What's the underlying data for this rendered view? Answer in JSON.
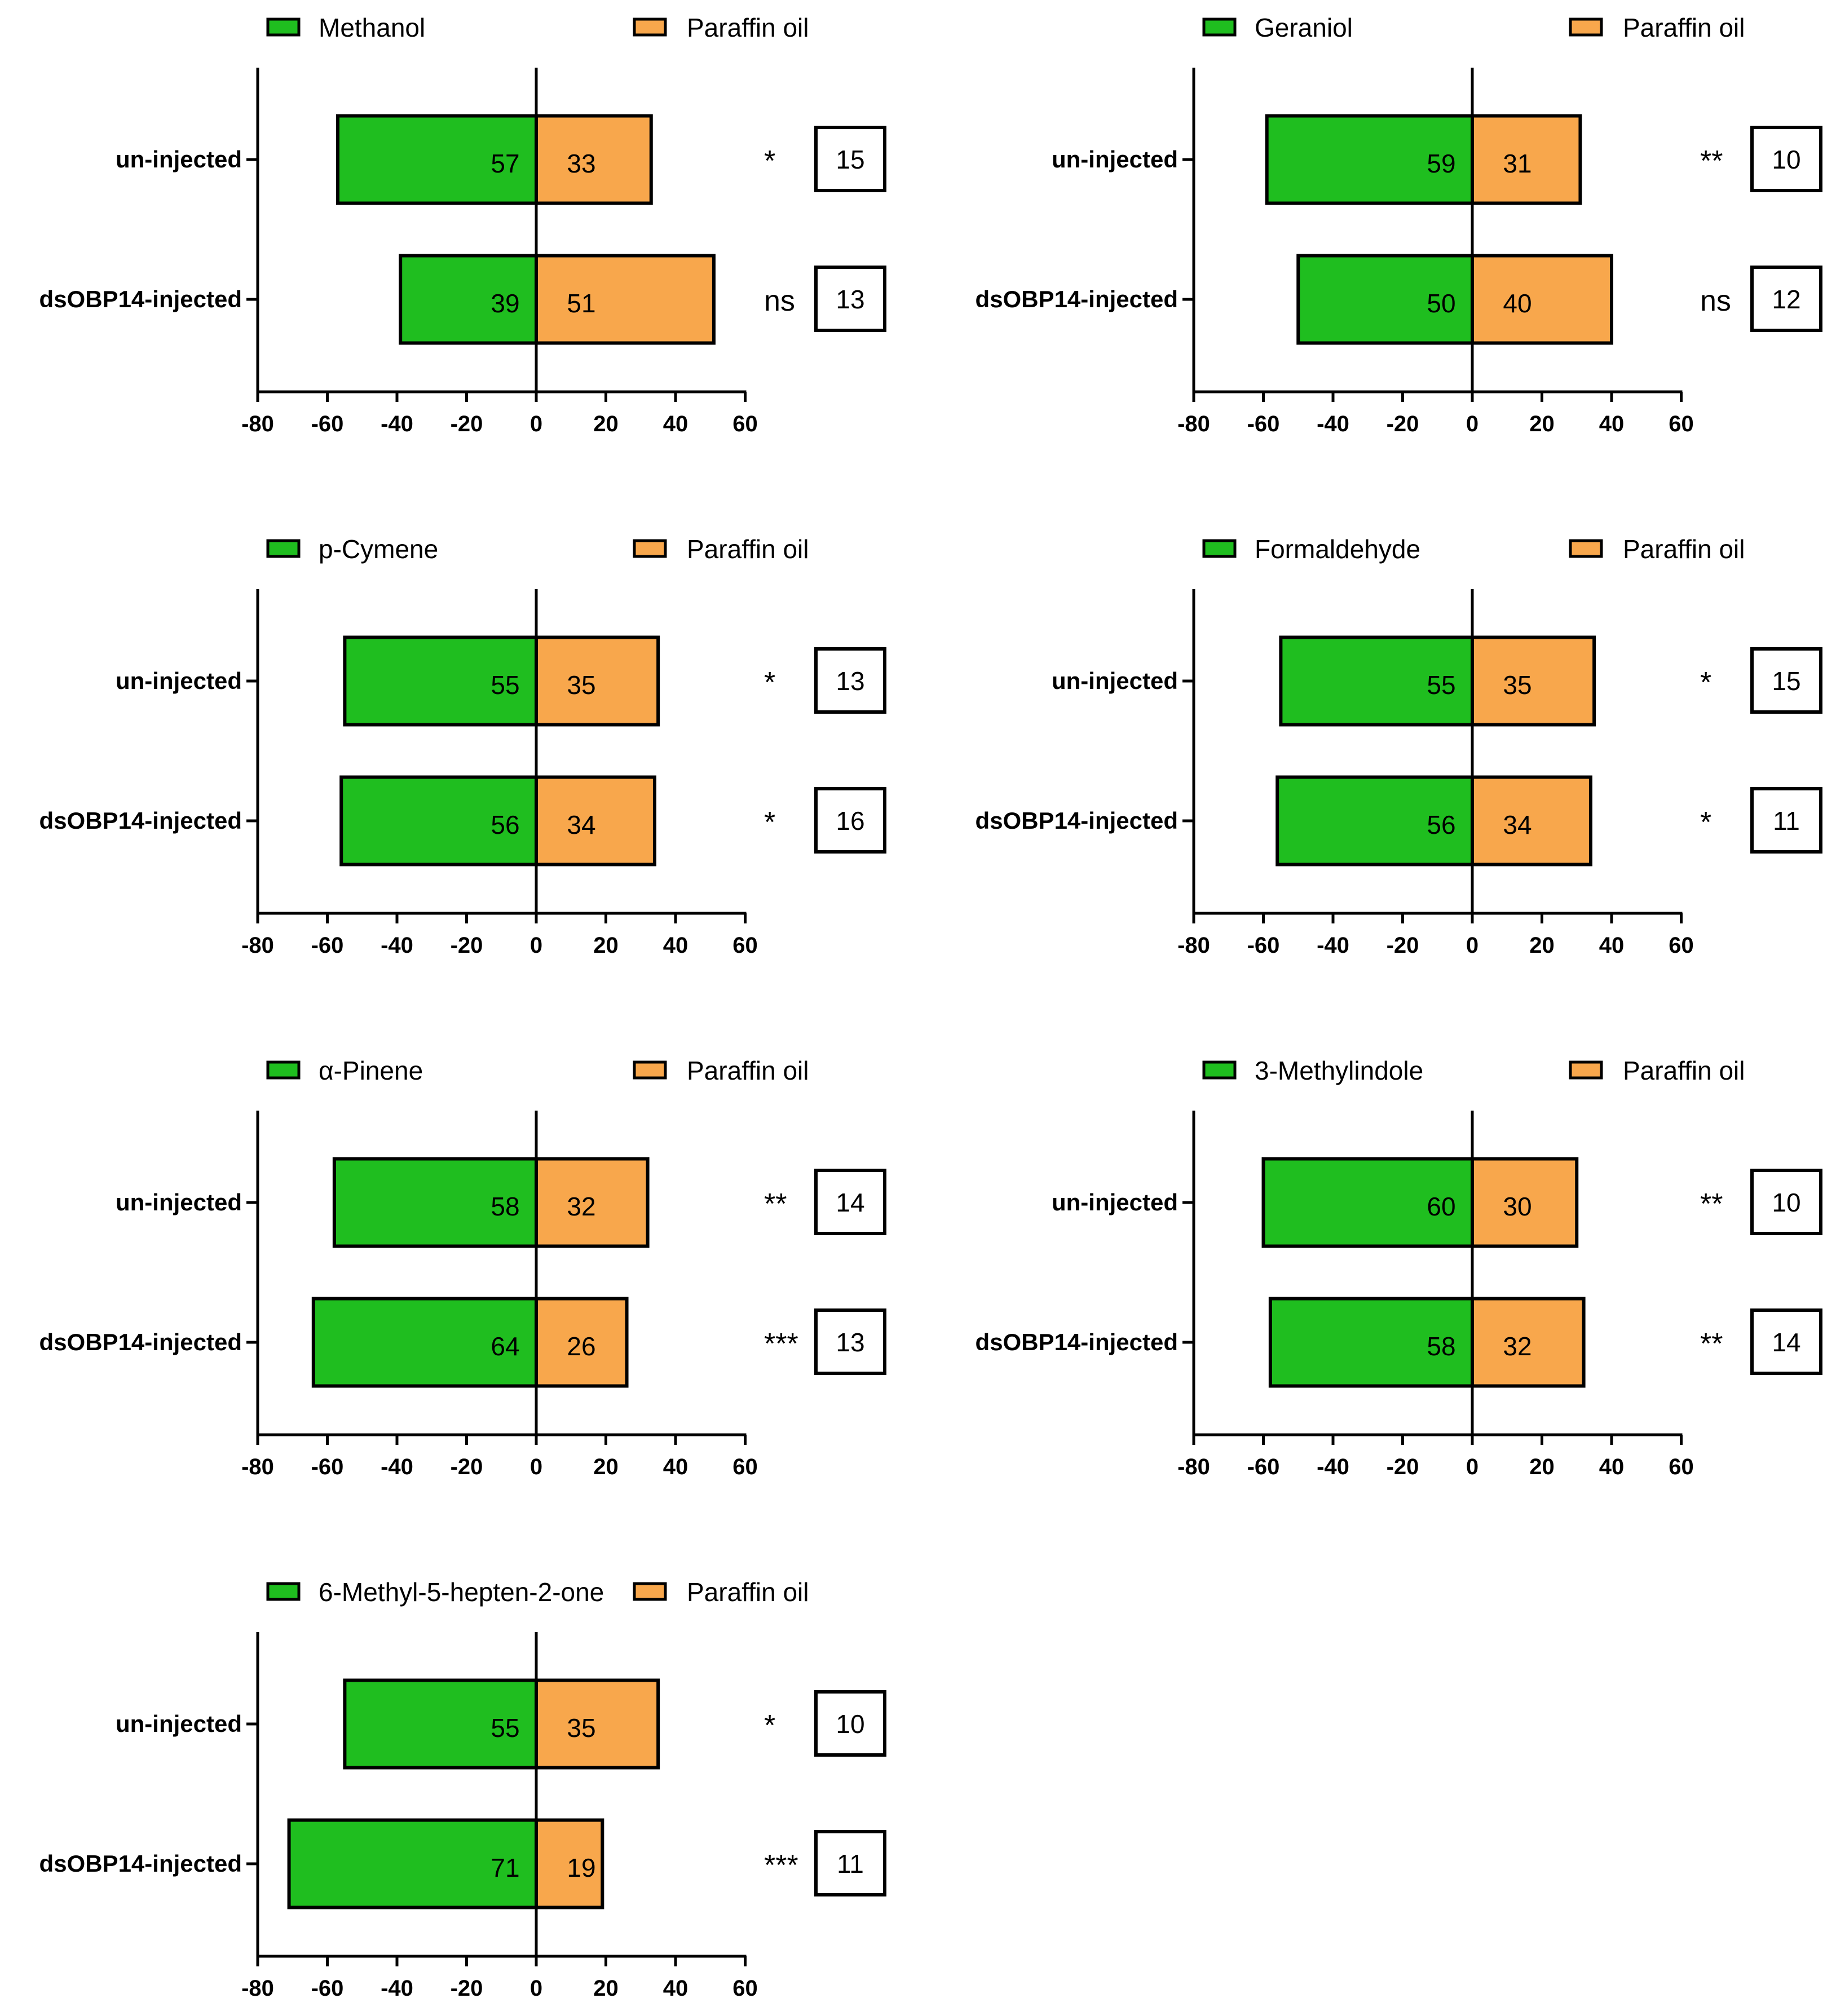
{
  "colors": {
    "treatment": "#1fbe1f",
    "control": "#f8a74c",
    "stroke": "#000000"
  },
  "chart_data": [
    {
      "type": "bar",
      "orientation": "horizontal-diverging",
      "legend": {
        "treatment": "Methanol",
        "control": "Paraffin oil"
      },
      "categories": [
        "un-injected",
        "dsOBP14-injected"
      ],
      "series": [
        {
          "name": "Methanol",
          "values": [
            -57,
            -39
          ]
        },
        {
          "name": "Paraffin oil",
          "values": [
            33,
            51
          ]
        }
      ],
      "value_labels": {
        "treatment": [
          "57",
          "39"
        ],
        "control": [
          "33",
          "51"
        ]
      },
      "significance": [
        "*",
        "ns"
      ],
      "n_counts": [
        "15",
        "13"
      ],
      "xlim": [
        -80,
        60
      ],
      "xticks": [
        "-80",
        "-60",
        "-40",
        "-20",
        "0",
        "20",
        "40",
        "60"
      ]
    },
    {
      "type": "bar",
      "orientation": "horizontal-diverging",
      "legend": {
        "treatment": "Geraniol",
        "control": "Paraffin oil"
      },
      "categories": [
        "un-injected",
        "dsOBP14-injected"
      ],
      "series": [
        {
          "name": "Geraniol",
          "values": [
            -59,
            -50
          ]
        },
        {
          "name": "Paraffin oil",
          "values": [
            31,
            40
          ]
        }
      ],
      "value_labels": {
        "treatment": [
          "59",
          "50"
        ],
        "control": [
          "31",
          "40"
        ]
      },
      "significance": [
        "**",
        "ns"
      ],
      "n_counts": [
        "10",
        "12"
      ],
      "xlim": [
        -80,
        60
      ],
      "xticks": [
        "-80",
        "-60",
        "-40",
        "-20",
        "0",
        "20",
        "40",
        "60"
      ]
    },
    {
      "type": "bar",
      "orientation": "horizontal-diverging",
      "legend": {
        "treatment": "p-Cymene",
        "control": "Paraffin oil"
      },
      "categories": [
        "un-injected",
        "dsOBP14-injected"
      ],
      "series": [
        {
          "name": "p-Cymene",
          "values": [
            -55,
            -56
          ]
        },
        {
          "name": "Paraffin oil",
          "values": [
            35,
            34
          ]
        }
      ],
      "value_labels": {
        "treatment": [
          "55",
          "56"
        ],
        "control": [
          "35",
          "34"
        ]
      },
      "significance": [
        "*",
        "*"
      ],
      "n_counts": [
        "13",
        "16"
      ],
      "xlim": [
        -80,
        60
      ],
      "xticks": [
        "-80",
        "-60",
        "-40",
        "-20",
        "0",
        "20",
        "40",
        "60"
      ]
    },
    {
      "type": "bar",
      "orientation": "horizontal-diverging",
      "legend": {
        "treatment": "Formaldehyde",
        "control": "Paraffin oil"
      },
      "categories": [
        "un-injected",
        "dsOBP14-injected"
      ],
      "series": [
        {
          "name": "Formaldehyde",
          "values": [
            -55,
            -56
          ]
        },
        {
          "name": "Paraffin oil",
          "values": [
            35,
            34
          ]
        }
      ],
      "value_labels": {
        "treatment": [
          "55",
          "56"
        ],
        "control": [
          "35",
          "34"
        ]
      },
      "significance": [
        "*",
        "*"
      ],
      "n_counts": [
        "15",
        "11"
      ],
      "xlim": [
        -80,
        60
      ],
      "xticks": [
        "-80",
        "-60",
        "-40",
        "-20",
        "0",
        "20",
        "40",
        "60"
      ]
    },
    {
      "type": "bar",
      "orientation": "horizontal-diverging",
      "legend": {
        "treatment": "α-Pinene",
        "control": "Paraffin oil"
      },
      "categories": [
        "un-injected",
        "dsOBP14-injected"
      ],
      "series": [
        {
          "name": "α-Pinene",
          "values": [
            -58,
            -64
          ]
        },
        {
          "name": "Paraffin oil",
          "values": [
            32,
            26
          ]
        }
      ],
      "value_labels": {
        "treatment": [
          "58",
          "64"
        ],
        "control": [
          "32",
          "26"
        ]
      },
      "significance": [
        "**",
        "***"
      ],
      "n_counts": [
        "14",
        "13"
      ],
      "xlim": [
        -80,
        60
      ],
      "xticks": [
        "-80",
        "-60",
        "-40",
        "-20",
        "0",
        "20",
        "40",
        "60"
      ]
    },
    {
      "type": "bar",
      "orientation": "horizontal-diverging",
      "legend": {
        "treatment": "3-Methylindole",
        "control": "Paraffin oil"
      },
      "categories": [
        "un-injected",
        "dsOBP14-injected"
      ],
      "series": [
        {
          "name": "3-Methylindole",
          "values": [
            -60,
            -58
          ]
        },
        {
          "name": "Paraffin oil",
          "values": [
            30,
            32
          ]
        }
      ],
      "value_labels": {
        "treatment": [
          "60",
          "58"
        ],
        "control": [
          "30",
          "32"
        ]
      },
      "significance": [
        "**",
        "**"
      ],
      "n_counts": [
        "10",
        "14"
      ],
      "xlim": [
        -80,
        60
      ],
      "xticks": [
        "-80",
        "-60",
        "-40",
        "-20",
        "0",
        "20",
        "40",
        "60"
      ]
    },
    {
      "type": "bar",
      "orientation": "horizontal-diverging",
      "legend": {
        "treatment": "6-Methyl-5-hepten-2-one",
        "control": "Paraffin oil"
      },
      "categories": [
        "un-injected",
        "dsOBP14-injected"
      ],
      "series": [
        {
          "name": "6-Methyl-5-hepten-2-one",
          "values": [
            -55,
            -71
          ]
        },
        {
          "name": "Paraffin oil",
          "values": [
            35,
            19
          ]
        }
      ],
      "value_labels": {
        "treatment": [
          "55",
          "71"
        ],
        "control": [
          "35",
          "19"
        ]
      },
      "significance": [
        "*",
        "***"
      ],
      "n_counts": [
        "10",
        "11"
      ],
      "xlim": [
        -80,
        60
      ],
      "xticks": [
        "-80",
        "-60",
        "-40",
        "-20",
        "0",
        "20",
        "40",
        "60"
      ]
    }
  ]
}
